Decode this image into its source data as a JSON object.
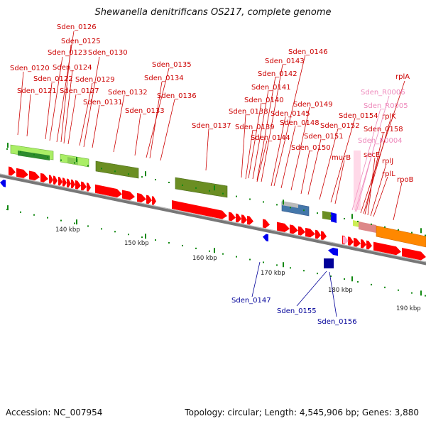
{
  "title": "Shewanella denitrificans OS217, complete genome",
  "accession_text": "Accession: NC_007954",
  "summary_text": "Topology: circular; Length: 4,545,906 bp; Genes: 3,880",
  "colors": {
    "forward_gene": "#ff0000",
    "reverse_gene": "#0000ee",
    "rna_gene": "#ffaacc",
    "label_fwd": "#cc0000",
    "label_rev": "#000099",
    "label_rna": "#ee88bb",
    "backbone": "#888888",
    "tick": "#118811",
    "cog_lightgreen": "#88ee44",
    "cog_olive": "#6b8e23",
    "cog_darkgreen": "#2e8b2e",
    "cog_steel": "#4477aa",
    "cog_orange": "#ff8800"
  },
  "kbp_labels": [
    "140 kbp",
    "150 kbp",
    "160 kbp",
    "170 kbp",
    "180 kbp",
    "190 kbp"
  ],
  "forward_labels": [
    "Sden_0126",
    "Sden_0125",
    "Sden_0123",
    "Sden_0130",
    "Sden_0120",
    "Sden_0124",
    "Sden_0122",
    "Sden_0129",
    "Sden_0121",
    "Sden_0127",
    "Sden_0131",
    "Sden_0132",
    "Sden_0133",
    "Sden_0135",
    "Sden_0134",
    "Sden_0136",
    "Sden_0137",
    "Sden_0146",
    "Sden_0143",
    "Sden_0142",
    "Sden_0141",
    "Sden_0140",
    "Sden_0138",
    "Sden_0139",
    "Sden_0144",
    "Sden_0145",
    "Sden_0149",
    "Sden_0148",
    "Sden_0150",
    "Sden_0151",
    "Sden_0152",
    "Sden_0154",
    "murB",
    "rplA",
    "rplK",
    "Sden_0158",
    "secE",
    "rplJ",
    "rplL",
    "rpoB"
  ],
  "rna_labels": [
    "Sden_R0006",
    "Sden_R0005",
    "Sden_R0004"
  ],
  "reverse_labels": [
    "Sden_0147",
    "Sden_0155",
    "Sden_0156"
  ]
}
